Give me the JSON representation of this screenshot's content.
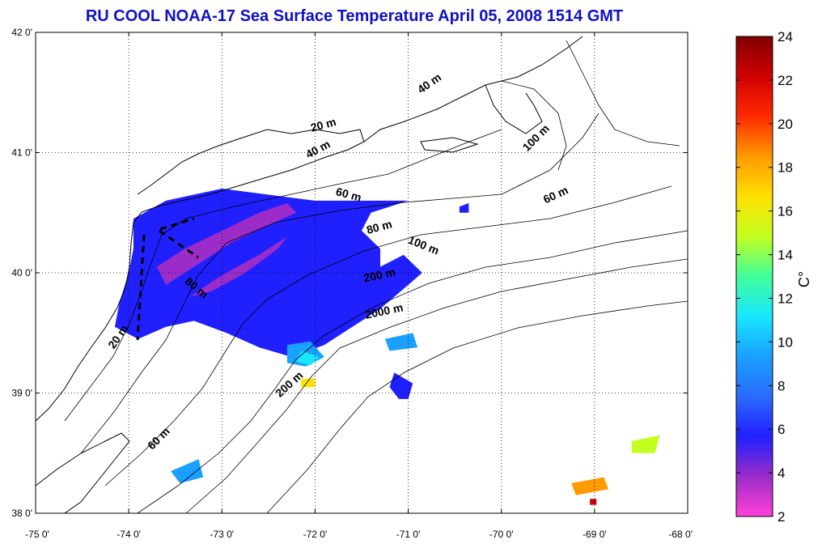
{
  "title": "RU COOL  NOAA-17 Sea Surface Temperature April 05, 2008 1514 GMT",
  "map": {
    "lon_range": [
      -75,
      -68
    ],
    "lat_range": [
      38,
      42
    ],
    "lon_ticks": [
      "-75 0'",
      "-74 0'",
      "-73 0'",
      "-72 0'",
      "-71 0'",
      "-70 0'",
      "-69 0'",
      "-68 0'"
    ],
    "lat_ticks": [
      "38 0'",
      "39 0'",
      "40 0'",
      "41 0'",
      "42 0'"
    ],
    "grid": "dotted"
  },
  "colorbar": {
    "unit": "C°",
    "min": 2,
    "max": 24,
    "ticks": [
      "2",
      "4",
      "6",
      "8",
      "10",
      "12",
      "14",
      "16",
      "18",
      "20",
      "22",
      "24"
    ]
  },
  "isobaths": [
    {
      "label": "20 m",
      "lon": -71.9,
      "lat": 41.2,
      "rot": -15
    },
    {
      "label": "40 m",
      "lon": -71.95,
      "lat": 41.0,
      "rot": -28
    },
    {
      "label": "40 m",
      "lon": -70.75,
      "lat": 41.55,
      "rot": -35
    },
    {
      "label": "100 m",
      "lon": -69.6,
      "lat": 41.1,
      "rot": -45
    },
    {
      "label": "60 m",
      "lon": -71.65,
      "lat": 40.62,
      "rot": 15
    },
    {
      "label": "60 m",
      "lon": -69.4,
      "lat": 40.62,
      "rot": -25
    },
    {
      "label": "80 m",
      "lon": -71.3,
      "lat": 40.35,
      "rot": -15
    },
    {
      "label": "100 m",
      "lon": -70.85,
      "lat": 40.2,
      "rot": 22
    },
    {
      "label": "200 m",
      "lon": -71.3,
      "lat": 39.95,
      "rot": -12
    },
    {
      "label": "2000 m",
      "lon": -71.25,
      "lat": 39.65,
      "rot": -12
    },
    {
      "label": "80 m",
      "lon": -73.3,
      "lat": 39.85,
      "rot": 40
    },
    {
      "label": "20 m",
      "lon": -74.08,
      "lat": 39.45,
      "rot": -55
    },
    {
      "label": "200 m",
      "lon": -72.25,
      "lat": 39.05,
      "rot": -42
    },
    {
      "label": "60 m",
      "lon": -73.65,
      "lat": 38.6,
      "rot": -45
    }
  ],
  "sst_patches": [
    {
      "temp": 6.4,
      "points": [
        [
          -73.95,
          40.45
        ],
        [
          -73.6,
          40.6
        ],
        [
          -73.0,
          40.7
        ],
        [
          -72.5,
          40.65
        ],
        [
          -72.0,
          40.6
        ],
        [
          -71.55,
          40.6
        ],
        [
          -71.0,
          40.6
        ],
        [
          -71.4,
          40.5
        ],
        [
          -71.5,
          40.35
        ],
        [
          -71.3,
          40.2
        ],
        [
          -71.3,
          40.05
        ],
        [
          -71.05,
          40.15
        ],
        [
          -70.85,
          40.0
        ],
        [
          -71.0,
          39.9
        ],
        [
          -71.3,
          39.7
        ],
        [
          -71.6,
          39.55
        ],
        [
          -71.9,
          39.4
        ],
        [
          -72.25,
          39.3
        ],
        [
          -72.6,
          39.38
        ],
        [
          -72.95,
          39.5
        ],
        [
          -73.3,
          39.6
        ],
        [
          -73.6,
          39.55
        ],
        [
          -73.9,
          39.45
        ],
        [
          -74.15,
          39.55
        ],
        [
          -74.1,
          39.75
        ],
        [
          -74.0,
          40.0
        ],
        [
          -73.95,
          40.2
        ]
      ]
    },
    {
      "temp": 4.2,
      "points": [
        [
          -73.7,
          40.05
        ],
        [
          -73.4,
          40.2
        ],
        [
          -73.0,
          40.35
        ],
        [
          -72.6,
          40.5
        ],
        [
          -72.3,
          40.58
        ],
        [
          -72.2,
          40.5
        ],
        [
          -72.55,
          40.38
        ],
        [
          -72.9,
          40.25
        ],
        [
          -73.3,
          40.05
        ],
        [
          -73.6,
          39.9
        ]
      ]
    },
    {
      "temp": 3.8,
      "points": [
        [
          -73.35,
          39.8
        ],
        [
          -73.0,
          39.98
        ],
        [
          -72.6,
          40.15
        ],
        [
          -72.3,
          40.3
        ],
        [
          -72.4,
          40.2
        ],
        [
          -72.75,
          40.0
        ],
        [
          -73.1,
          39.85
        ]
      ]
    },
    {
      "temp": 9.0,
      "points": [
        [
          -72.3,
          39.4
        ],
        [
          -72.05,
          39.43
        ],
        [
          -71.9,
          39.3
        ],
        [
          -72.1,
          39.22
        ],
        [
          -72.3,
          39.25
        ]
      ]
    },
    {
      "temp": 11.5,
      "points": [
        [
          -72.15,
          39.35
        ],
        [
          -71.95,
          39.3
        ],
        [
          -72.05,
          39.23
        ],
        [
          -72.2,
          39.26
        ]
      ]
    },
    {
      "temp": 6.0,
      "points": [
        [
          -71.15,
          39.17
        ],
        [
          -70.95,
          39.08
        ],
        [
          -71.0,
          38.95
        ],
        [
          -71.1,
          38.95
        ],
        [
          -71.2,
          39.05
        ]
      ]
    },
    {
      "temp": 8.6,
      "points": [
        [
          -71.25,
          39.45
        ],
        [
          -70.95,
          39.5
        ],
        [
          -70.9,
          39.38
        ],
        [
          -71.2,
          39.35
        ]
      ]
    },
    {
      "temp": 17.5,
      "points": [
        [
          -72.15,
          39.12
        ],
        [
          -72.0,
          39.12
        ],
        [
          -72.0,
          39.05
        ],
        [
          -72.15,
          39.05
        ]
      ]
    },
    {
      "temp": 8.6,
      "points": [
        [
          -73.55,
          38.35
        ],
        [
          -73.25,
          38.45
        ],
        [
          -73.2,
          38.3
        ],
        [
          -73.45,
          38.25
        ]
      ]
    },
    {
      "temp": 18.8,
      "points": [
        [
          -69.25,
          38.25
        ],
        [
          -68.9,
          38.3
        ],
        [
          -68.85,
          38.2
        ],
        [
          -69.2,
          38.15
        ]
      ]
    },
    {
      "temp": 15.5,
      "points": [
        [
          -68.6,
          38.6
        ],
        [
          -68.3,
          38.65
        ],
        [
          -68.35,
          38.5
        ],
        [
          -68.6,
          38.5
        ]
      ]
    },
    {
      "temp": 22.0,
      "points": [
        [
          -69.05,
          38.12
        ],
        [
          -68.98,
          38.12
        ],
        [
          -68.98,
          38.07
        ],
        [
          -69.05,
          38.07
        ]
      ]
    },
    {
      "temp": 6.0,
      "points": [
        [
          -70.45,
          40.55
        ],
        [
          -70.35,
          40.58
        ],
        [
          -70.35,
          40.5
        ],
        [
          -70.45,
          40.5
        ]
      ]
    }
  ],
  "colors": {
    "title": "#1010c8",
    "land_outline": "#000000",
    "sea": "#ffffff",
    "colormap": [
      "#ff40d8",
      "#9b2cc8",
      "#2020ff",
      "#2a6cff",
      "#1aa0ff",
      "#18e6ff",
      "#40ff9a",
      "#c4ff20",
      "#ffe000",
      "#ff9a00",
      "#ff2a00",
      "#d00000",
      "#800000"
    ]
  }
}
